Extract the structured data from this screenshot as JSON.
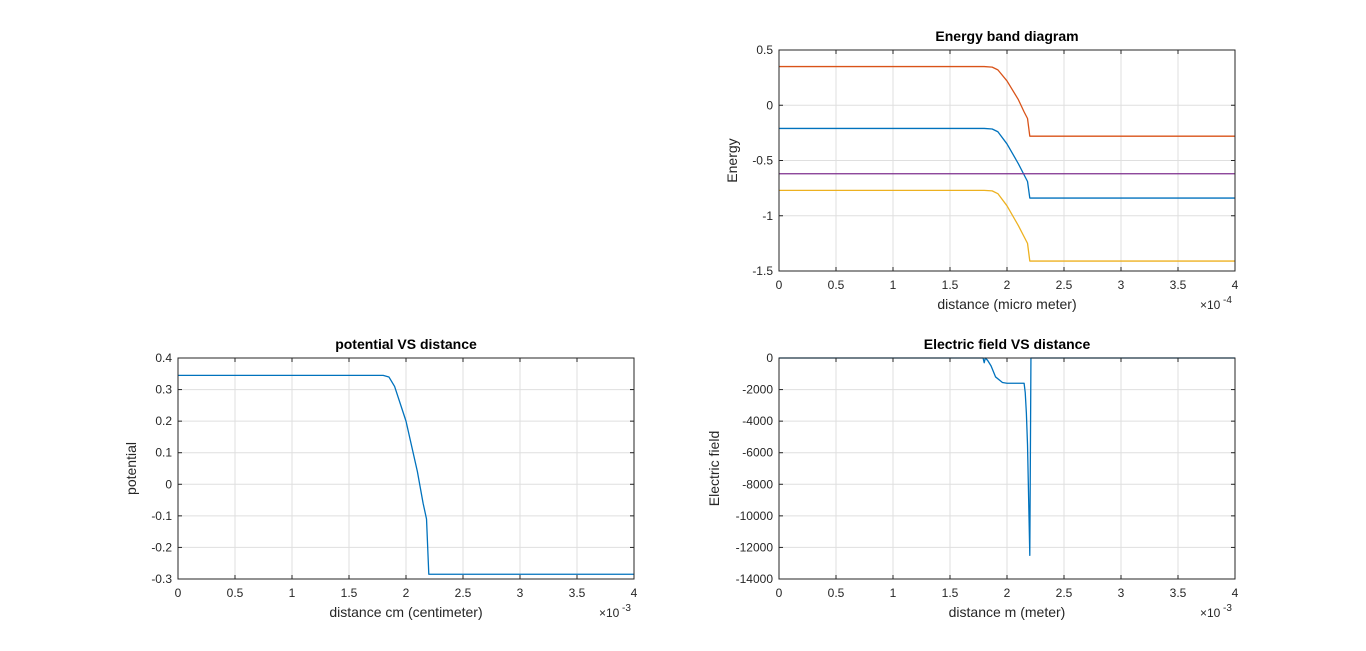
{
  "chart_data": [
    {
      "id": "energy",
      "type": "line",
      "title": "Energy band diagram",
      "xlabel": "distance (micro meter)",
      "ylabel": "Energy",
      "xlim": [
        0,
        0.0004
      ],
      "ylim": [
        -1.5,
        0.5
      ],
      "xticks": [
        0,
        5e-05,
        0.0001,
        0.00015,
        0.0002,
        0.00025,
        0.0003,
        0.00035,
        0.0004
      ],
      "xtick_labels": [
        "0",
        "0.5",
        "1",
        "1.5",
        "2",
        "2.5",
        "3",
        "3.5",
        "4"
      ],
      "yticks": [
        -1.5,
        -1,
        -0.5,
        0,
        0.5
      ],
      "ytick_labels": [
        "-1.5",
        "-1",
        "-0.5",
        "0",
        "0.5"
      ],
      "x_multiplier": {
        "base": "×10",
        "exp": "-4"
      },
      "grid": true,
      "series": [
        {
          "color": "#d95319",
          "x": [
            0,
            0.00018,
            0.000187,
            0.000192,
            0.0002,
            0.00021,
            0.000215,
            0.000218,
            0.00022,
            0.0004
          ],
          "y": [
            0.35,
            0.35,
            0.345,
            0.32,
            0.22,
            0.05,
            -0.06,
            -0.12,
            -0.28,
            -0.28
          ]
        },
        {
          "color": "#0072bd",
          "x": [
            0,
            0.00018,
            0.000187,
            0.000192,
            0.0002,
            0.00021,
            0.000215,
            0.000218,
            0.00022,
            0.0004
          ],
          "y": [
            -0.21,
            -0.21,
            -0.215,
            -0.24,
            -0.35,
            -0.53,
            -0.63,
            -0.69,
            -0.84,
            -0.84
          ]
        },
        {
          "color": "#7e2f8e",
          "x": [
            0,
            0.0004
          ],
          "y": [
            -0.62,
            -0.62
          ]
        },
        {
          "color": "#edb120",
          "x": [
            0,
            0.00018,
            0.000187,
            0.000192,
            0.0002,
            0.00021,
            0.000215,
            0.000218,
            0.00022,
            0.0004
          ],
          "y": [
            -0.77,
            -0.77,
            -0.775,
            -0.8,
            -0.91,
            -1.09,
            -1.19,
            -1.25,
            -1.41,
            -1.41
          ]
        }
      ]
    },
    {
      "id": "potential",
      "type": "line",
      "title": "potential VS distance",
      "xlabel": "distance cm (centimeter)",
      "ylabel": "potential",
      "xlim": [
        0,
        0.004
      ],
      "ylim": [
        -0.3,
        0.4
      ],
      "xticks": [
        0,
        0.0005,
        0.001,
        0.0015,
        0.002,
        0.0025,
        0.003,
        0.0035,
        0.004
      ],
      "xtick_labels": [
        "0",
        "0.5",
        "1",
        "1.5",
        "2",
        "2.5",
        "3",
        "3.5",
        "4"
      ],
      "yticks": [
        -0.3,
        -0.2,
        -0.1,
        0,
        0.1,
        0.2,
        0.3,
        0.4
      ],
      "ytick_labels": [
        "-0.3",
        "-0.2",
        "-0.1",
        "0",
        "0.1",
        "0.2",
        "0.3",
        "0.4"
      ],
      "x_multiplier": {
        "base": "×10",
        "exp": "-3"
      },
      "grid": true,
      "series": [
        {
          "color": "#0072bd",
          "x": [
            0,
            0.0018,
            0.00185,
            0.0019,
            0.002,
            0.0021,
            0.00215,
            0.00218,
            0.0022,
            0.004
          ],
          "y": [
            0.345,
            0.345,
            0.34,
            0.31,
            0.2,
            0.04,
            -0.06,
            -0.11,
            -0.285,
            -0.285
          ]
        }
      ]
    },
    {
      "id": "efield",
      "type": "line",
      "title": "Electric field VS distance",
      "xlabel": "distance m (meter)",
      "ylabel": "Electric field",
      "xlim": [
        0,
        0.004
      ],
      "ylim": [
        -14000,
        0
      ],
      "xticks": [
        0,
        0.0005,
        0.001,
        0.0015,
        0.002,
        0.0025,
        0.003,
        0.0035,
        0.004
      ],
      "xtick_labels": [
        "0",
        "0.5",
        "1",
        "1.5",
        "2",
        "2.5",
        "3",
        "3.5",
        "4"
      ],
      "yticks": [
        -14000,
        -12000,
        -10000,
        -8000,
        -6000,
        -4000,
        -2000,
        0
      ],
      "ytick_labels": [
        "-14000",
        "-12000",
        "-10000",
        "-8000",
        "-6000",
        "-4000",
        "-2000",
        "0"
      ],
      "x_multiplier": {
        "base": "×10",
        "exp": "-3"
      },
      "grid": true,
      "series": [
        {
          "color": "#0072bd",
          "x": [
            0,
            0.00179,
            0.0018,
            0.00181,
            0.00183,
            0.00186,
            0.0019,
            0.00196,
            0.002,
            0.0021,
            0.00215,
            0.00216,
            0.00217,
            0.00218,
            0.00219,
            0.0022,
            0.00221,
            0.004
          ],
          "y": [
            0,
            0,
            -300,
            0,
            -150,
            -500,
            -1200,
            -1550,
            -1600,
            -1600,
            -1600,
            -2200,
            -3500,
            -5500,
            -9000,
            -12500,
            0,
            0
          ]
        }
      ]
    }
  ]
}
